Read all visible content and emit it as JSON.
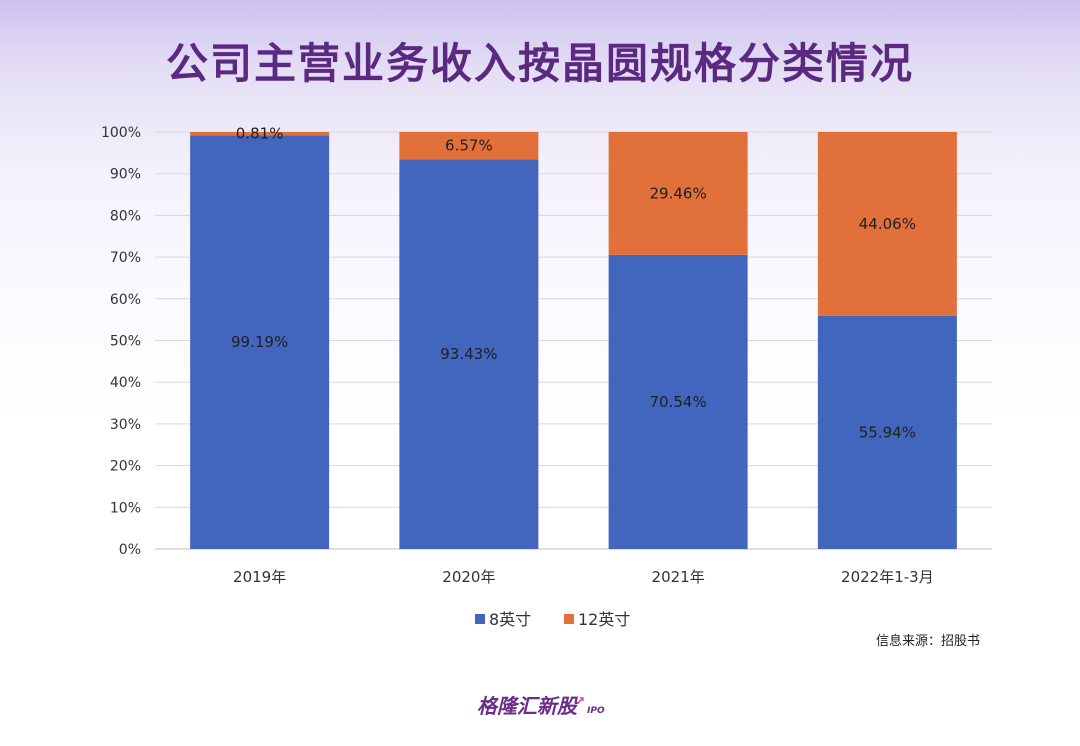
{
  "title": "公司主营业务收入按晶圆规格分类情况",
  "source": "信息来源：招股书",
  "brand": {
    "name": "格隆汇新股",
    "suffix": "IPO"
  },
  "watermark": {
    "name": "格隆汇新股",
    "suffix": "IPO"
  },
  "colors": {
    "series_8inch": "#4266be",
    "series_12inch": "#e2703a",
    "grid": "#d9d9d9",
    "axis_text": "#333333"
  },
  "chart_data": {
    "type": "bar",
    "stacked": true,
    "categories": [
      "2019年",
      "2020年",
      "2021年",
      "2022年1-3月"
    ],
    "series": [
      {
        "name": "8英寸",
        "values": [
          99.19,
          93.43,
          70.54,
          55.94
        ],
        "labels": [
          "99.19%",
          "93.43%",
          "70.54%",
          "55.94%"
        ]
      },
      {
        "name": "12英寸",
        "values": [
          0.81,
          6.57,
          29.46,
          44.06
        ],
        "labels": [
          "0.81%",
          "6.57%",
          "29.46%",
          "44.06%"
        ]
      }
    ],
    "ylim": [
      0,
      100
    ],
    "yticks": [
      "0%",
      "10%",
      "20%",
      "30%",
      "40%",
      "50%",
      "60%",
      "70%",
      "80%",
      "90%",
      "100%"
    ],
    "legend": "bottom",
    "grid": true
  }
}
